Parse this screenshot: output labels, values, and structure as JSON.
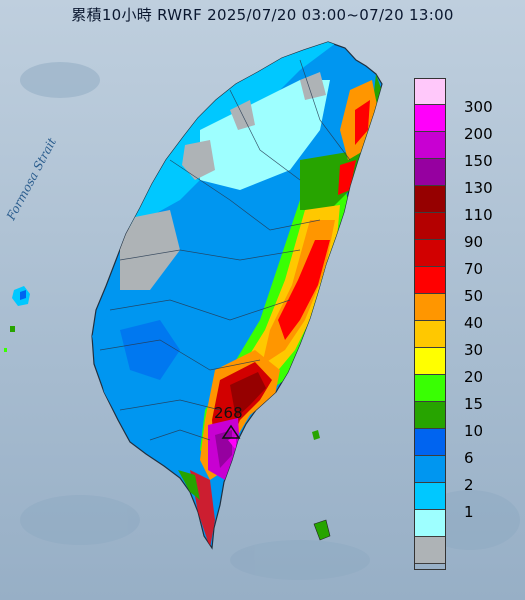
{
  "title": "累積10小時 RWRF 2025/07/20 03:00~07/20 13:00",
  "strait_label": "Formosa Strait",
  "max_marker_value": "268",
  "colors": {
    "sea": "#a9bdd0",
    "land_gray": "#aeb3b6",
    "c1": "#9effff",
    "c2": "#00c8ff",
    "c6": "#0096f0",
    "c10": "#0064f0",
    "c15": "#27a400",
    "c20": "#39ff03",
    "c30": "#ffff00",
    "c40": "#ffc800",
    "c50": "#ff9600",
    "c70": "#ff0000",
    "c90": "#d20000",
    "c110": "#b40000",
    "c130": "#960000",
    "c150": "#9600a0",
    "c200": "#c800d2",
    "c300": "#ff00fa",
    "c300p": "#ffc8fa"
  },
  "legend": [
    {
      "label": "300",
      "color": "#ffc8fa"
    },
    {
      "label": "200",
      "color": "#ff00fa"
    },
    {
      "label": "150",
      "color": "#c800d2"
    },
    {
      "label": "130",
      "color": "#9600a0"
    },
    {
      "label": "110",
      "color": "#960000"
    },
    {
      "label": "90",
      "color": "#b40000"
    },
    {
      "label": "70",
      "color": "#d20000"
    },
    {
      "label": "50",
      "color": "#ff0000"
    },
    {
      "label": "40",
      "color": "#ff9600"
    },
    {
      "label": "30",
      "color": "#ffc800"
    },
    {
      "label": "20",
      "color": "#ffff00"
    },
    {
      "label": "15",
      "color": "#39ff03"
    },
    {
      "label": "10",
      "color": "#27a400"
    },
    {
      "label": "6",
      "color": "#0064f0"
    },
    {
      "label": "2",
      "color": "#0096f0"
    },
    {
      "label": "1",
      "color": "#00c8ff"
    },
    {
      "label": "",
      "color": "#9effff"
    },
    {
      "label": "",
      "color": "#aeb3b6"
    }
  ]
}
